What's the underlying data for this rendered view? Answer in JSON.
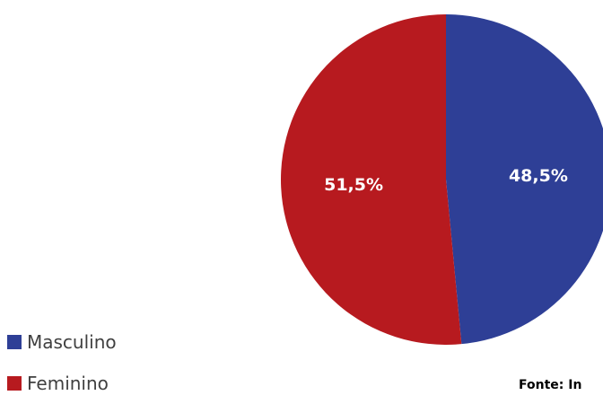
{
  "chart_data": {
    "type": "pie",
    "slices": [
      {
        "label": "Masculino",
        "value": 48.5,
        "display": "48,5%",
        "color": "#2e3f96"
      },
      {
        "label": "Feminino",
        "value": 51.5,
        "display": "51,5%",
        "color": "#b71a1f"
      }
    ],
    "legend": [
      "Masculino",
      "Feminino"
    ],
    "legend_position": "bottom-left",
    "start_angle": "12 o'clock",
    "direction": "clockwise"
  },
  "source_text": "Fonte: In"
}
